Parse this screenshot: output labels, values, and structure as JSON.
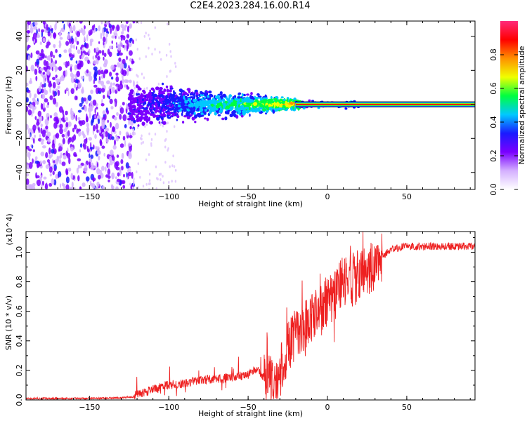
{
  "title": "C2E4.2023.284.16.00.R14",
  "chart_data": [
    {
      "type": "heatmap",
      "xlabel": "Height of straight line (km)",
      "ylabel": "Frequency (Hz)",
      "xlim": [
        -190,
        93
      ],
      "ylim": [
        -50,
        49
      ],
      "xticks": [
        -150,
        -100,
        -50,
        0,
        50
      ],
      "yticks": [
        -40,
        -20,
        0,
        20,
        40
      ],
      "colorbar": {
        "label": "Normalized spectral amplitude",
        "range": [
          0,
          1
        ],
        "ticks": [
          "0.0",
          "0.2",
          "0.4",
          "0.6",
          "0.8"
        ],
        "colormap": [
          "#ffffff",
          "#d4b0ff",
          "#7a00ff",
          "#1a1aff",
          "#00c8ff",
          "#00ff40",
          "#f0ff00",
          "#ff9000",
          "#ff0000",
          "#ff2a7a"
        ]
      },
      "regions": [
        {
          "x_range": [
            -190,
            -125
          ],
          "description_level": "broadband noise, low amplitude (0.1-0.3)"
        },
        {
          "x_range": [
            -125,
            -20
          ],
          "freq_spread_hz": 15,
          "level": "0.2-0.6"
        },
        {
          "x_range": [
            -20,
            93
          ],
          "freq_hz": 0,
          "level": "0.9-1.0"
        }
      ]
    },
    {
      "type": "line",
      "xlabel": "Height of straight line (km)",
      "ylabel": "SNR (10 * v/v)",
      "y_multiplier": "(x10^4)",
      "xlim": [
        -190,
        93
      ],
      "ylim": [
        0,
        1.14
      ],
      "xticks": [
        -150,
        -100,
        -50,
        0,
        50
      ],
      "yticks": [
        "0.0",
        "0.2",
        "0.4",
        "0.6",
        "0.8",
        "1.0"
      ],
      "color": "#ee2020",
      "series": [
        {
          "x": [
            -190,
            -170,
            -150,
            -130,
            -122,
            -115,
            -110,
            -100,
            -90,
            -80,
            -70,
            -60,
            -50,
            -45,
            -40,
            -35,
            -30,
            -25,
            -20,
            -15,
            -10,
            -5,
            0,
            5,
            10,
            15,
            20,
            25,
            30,
            35,
            40,
            50,
            60,
            70,
            80,
            93
          ],
          "y": [
            0.01,
            0.01,
            0.01,
            0.015,
            0.02,
            0.04,
            0.06,
            0.09,
            0.1,
            0.12,
            0.13,
            0.14,
            0.16,
            0.2,
            0.14,
            0.12,
            0.18,
            0.35,
            0.45,
            0.5,
            0.55,
            0.6,
            0.68,
            0.72,
            0.8,
            0.82,
            0.85,
            0.88,
            0.92,
            0.97,
            1.02,
            1.04,
            1.04,
            1.04,
            1.04,
            1.04
          ]
        }
      ]
    }
  ]
}
